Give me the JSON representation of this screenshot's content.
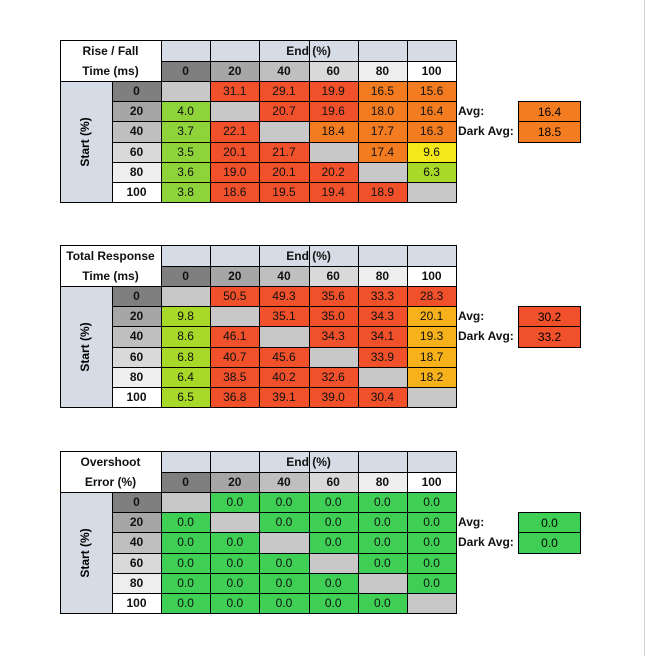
{
  "colors": {
    "header_bg": "#d6dce5",
    "corner_bg": "#ffffff",
    "diag_bg": "#c8c8c8",
    "red": "#f0502a",
    "orange": "#f47c20",
    "yellow_orange": "#f7b21b",
    "yellow": "#f4e81a",
    "light_green": "#a8d929",
    "green": "#8fd33a",
    "overshoot_green": "#3fcf55",
    "col_hdr_shades": [
      "#7f7f7f",
      "#a6a6a6",
      "#bfbfbf",
      "#d9d9d9",
      "#eeeeee",
      "#ffffff"
    ]
  },
  "chart_data": [
    {
      "type": "table",
      "title": "Rise / Fall Time (ms)",
      "title_line1": "Rise / Fall",
      "title_line2": "Time (ms)",
      "col_axis_label": "End (%)",
      "row_axis_label": "Start (%)",
      "columns": [
        "0",
        "20",
        "40",
        "60",
        "80",
        "100"
      ],
      "rows": [
        "0",
        "20",
        "40",
        "60",
        "80",
        "100"
      ],
      "values": [
        [
          "",
          "31.1",
          "29.1",
          "19.9",
          "16.5",
          "15.6"
        ],
        [
          "4.0",
          "",
          "20.7",
          "19.6",
          "18.0",
          "16.4"
        ],
        [
          "3.7",
          "22.1",
          "",
          "18.4",
          "17.7",
          "16.3"
        ],
        [
          "3.5",
          "20.1",
          "21.7",
          "",
          "17.4",
          "9.6"
        ],
        [
          "3.6",
          "19.0",
          "20.1",
          "20.2",
          "",
          "6.3"
        ],
        [
          "3.8",
          "18.6",
          "19.5",
          "19.4",
          "18.9",
          ""
        ]
      ],
      "colors": [
        [
          "diag",
          "red",
          "red",
          "red",
          "orange",
          "orange"
        ],
        [
          "green",
          "diag",
          "red",
          "red",
          "orange",
          "orange"
        ],
        [
          "green",
          "red",
          "diag",
          "orange",
          "orange",
          "orange"
        ],
        [
          "green",
          "red",
          "red",
          "diag",
          "orange",
          "yellow"
        ],
        [
          "green",
          "red",
          "red",
          "red",
          "diag",
          "light_green"
        ],
        [
          "green",
          "red",
          "red",
          "red",
          "red",
          "diag"
        ]
      ],
      "avg_label": "Avg:",
      "avg_value": "16.4",
      "avg_color": "orange",
      "dark_avg_label": "Dark Avg:",
      "dark_avg_value": "18.5",
      "dark_avg_color": "orange"
    },
    {
      "type": "table",
      "title": "Total Response Time (ms)",
      "title_line1": "Total Response",
      "title_line2": "Time (ms)",
      "col_axis_label": "End (%)",
      "row_axis_label": "Start (%)",
      "columns": [
        "0",
        "20",
        "40",
        "60",
        "80",
        "100"
      ],
      "rows": [
        "0",
        "20",
        "40",
        "60",
        "80",
        "100"
      ],
      "values": [
        [
          "",
          "50.5",
          "49.3",
          "35.6",
          "33.3",
          "28.3"
        ],
        [
          "9.8",
          "",
          "35.1",
          "35.0",
          "34.3",
          "20.1"
        ],
        [
          "8.6",
          "46.1",
          "",
          "34.3",
          "34.1",
          "19.3"
        ],
        [
          "6.8",
          "40.7",
          "45.6",
          "",
          "33.9",
          "18.7"
        ],
        [
          "6.4",
          "38.5",
          "40.2",
          "32.6",
          "",
          "18.2"
        ],
        [
          "6.5",
          "36.8",
          "39.1",
          "39.0",
          "30.4",
          ""
        ]
      ],
      "colors": [
        [
          "diag",
          "red",
          "red",
          "red",
          "red",
          "red"
        ],
        [
          "light_green",
          "diag",
          "red",
          "red",
          "red",
          "yellow_orange"
        ],
        [
          "light_green",
          "red",
          "diag",
          "red",
          "red",
          "yellow_orange"
        ],
        [
          "light_green",
          "red",
          "red",
          "diag",
          "red",
          "yellow_orange"
        ],
        [
          "light_green",
          "red",
          "red",
          "red",
          "diag",
          "yellow_orange"
        ],
        [
          "light_green",
          "red",
          "red",
          "red",
          "red",
          "diag"
        ]
      ],
      "avg_label": "Avg:",
      "avg_value": "30.2",
      "avg_color": "red",
      "dark_avg_label": "Dark Avg:",
      "dark_avg_value": "33.2",
      "dark_avg_color": "red"
    },
    {
      "type": "table",
      "title": "Overshoot Error (%)",
      "title_line1": "Overshoot",
      "title_line2": "Error (%)",
      "col_axis_label": "End (%)",
      "row_axis_label": "Start (%)",
      "columns": [
        "0",
        "20",
        "40",
        "60",
        "80",
        "100"
      ],
      "rows": [
        "0",
        "20",
        "40",
        "60",
        "80",
        "100"
      ],
      "values": [
        [
          "",
          "0.0",
          "0.0",
          "0.0",
          "0.0",
          "0.0"
        ],
        [
          "0.0",
          "",
          "0.0",
          "0.0",
          "0.0",
          "0.0"
        ],
        [
          "0.0",
          "0.0",
          "",
          "0.0",
          "0.0",
          "0.0"
        ],
        [
          "0.0",
          "0.0",
          "0.0",
          "",
          "0.0",
          "0.0"
        ],
        [
          "0.0",
          "0.0",
          "0.0",
          "0.0",
          "",
          "0.0"
        ],
        [
          "0.0",
          "0.0",
          "0.0",
          "0.0",
          "0.0",
          ""
        ]
      ],
      "colors": [
        [
          "diag",
          "overshoot_green",
          "overshoot_green",
          "overshoot_green",
          "overshoot_green",
          "overshoot_green"
        ],
        [
          "overshoot_green",
          "diag",
          "overshoot_green",
          "overshoot_green",
          "overshoot_green",
          "overshoot_green"
        ],
        [
          "overshoot_green",
          "overshoot_green",
          "diag",
          "overshoot_green",
          "overshoot_green",
          "overshoot_green"
        ],
        [
          "overshoot_green",
          "overshoot_green",
          "overshoot_green",
          "diag",
          "overshoot_green",
          "overshoot_green"
        ],
        [
          "overshoot_green",
          "overshoot_green",
          "overshoot_green",
          "overshoot_green",
          "diag",
          "overshoot_green"
        ],
        [
          "overshoot_green",
          "overshoot_green",
          "overshoot_green",
          "overshoot_green",
          "overshoot_green",
          "diag"
        ]
      ],
      "avg_label": "Avg:",
      "avg_value": "0.0",
      "avg_color": "overshoot_green",
      "dark_avg_label": "Dark Avg:",
      "dark_avg_value": "0.0",
      "dark_avg_color": "overshoot_green"
    }
  ]
}
